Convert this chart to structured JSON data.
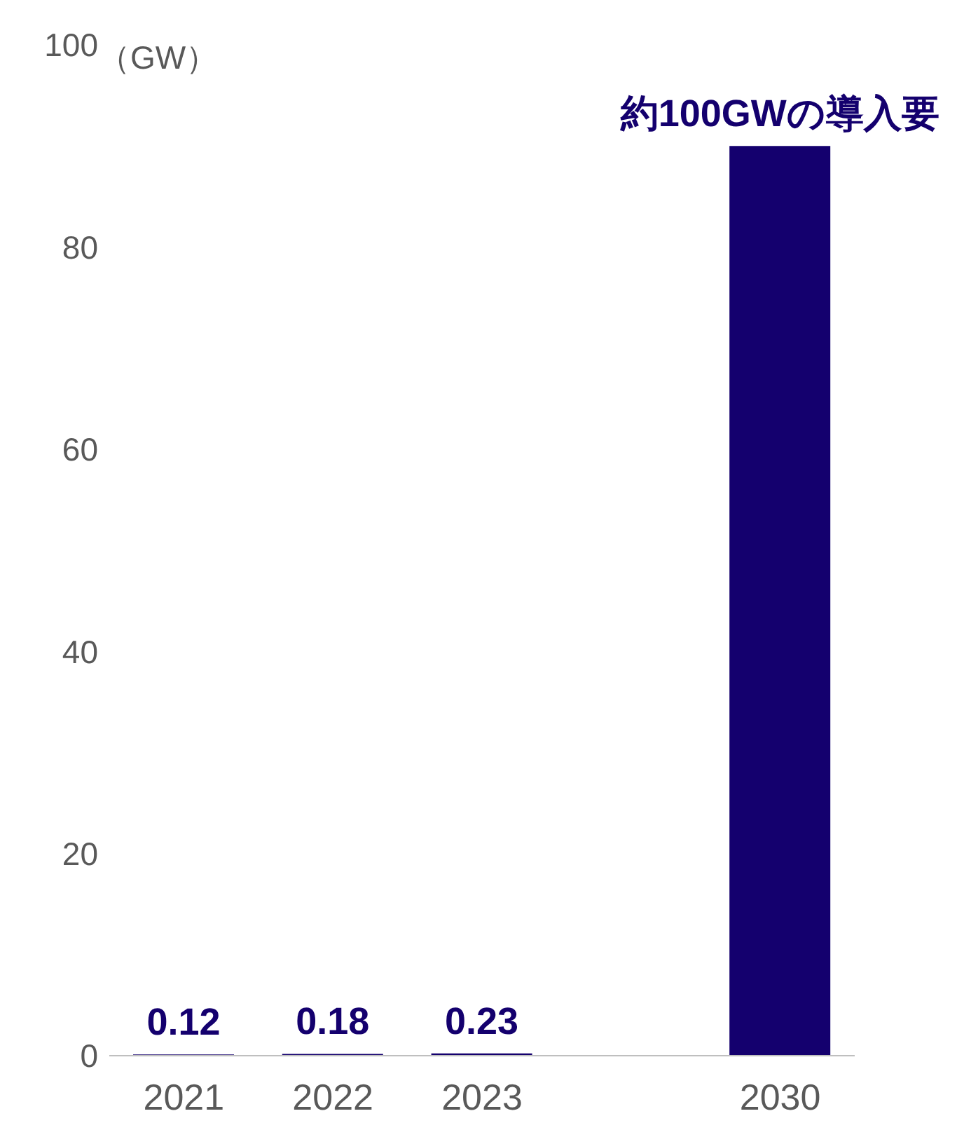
{
  "chart_data": {
    "type": "bar",
    "ylabel": "（GW）",
    "categories": [
      "2021",
      "2022",
      "2023",
      null,
      "2030"
    ],
    "values": [
      0.12,
      0.18,
      0.23,
      null,
      90
    ],
    "value_labels": [
      "0.12",
      "0.18",
      "0.23",
      null,
      "約100GWの導入要"
    ],
    "color": "#14006e",
    "ylim": [
      0,
      100
    ],
    "yticks": [
      0,
      20,
      40,
      60,
      80,
      100
    ]
  }
}
